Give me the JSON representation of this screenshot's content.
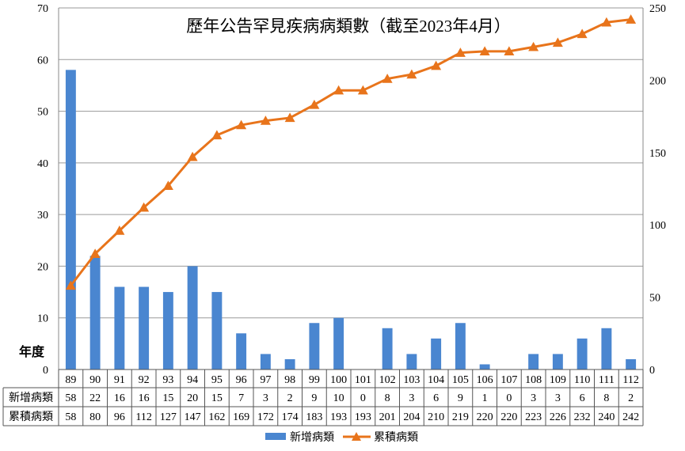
{
  "chart_data": {
    "type": "bar+line",
    "title": "歷年公告罕見疾病病類數（截至2023年4月）",
    "categories": [
      "89",
      "90",
      "91",
      "92",
      "93",
      "94",
      "95",
      "96",
      "97",
      "98",
      "99",
      "100",
      "101",
      "102",
      "103",
      "104",
      "105",
      "106",
      "107",
      "108",
      "109",
      "110",
      "111",
      "112"
    ],
    "xlabel": "年度",
    "series": [
      {
        "name": "新增病類",
        "type": "bar",
        "axis": "left",
        "color": "#4a86d0",
        "values": [
          58,
          22,
          16,
          16,
          15,
          20,
          15,
          7,
          3,
          2,
          9,
          10,
          0,
          8,
          3,
          6,
          9,
          1,
          0,
          3,
          3,
          6,
          8,
          2
        ]
      },
      {
        "name": "累積病類",
        "type": "line",
        "axis": "right",
        "color": "#e8741b",
        "marker": "triangle",
        "values": [
          58,
          80,
          96,
          112,
          127,
          147,
          162,
          169,
          172,
          174,
          183,
          193,
          193,
          201,
          204,
          210,
          219,
          220,
          220,
          223,
          226,
          232,
          240,
          242
        ]
      }
    ],
    "y_left": {
      "min": 0,
      "max": 70,
      "ticks": [
        0,
        10,
        20,
        30,
        40,
        50,
        60,
        70
      ]
    },
    "y_right": {
      "min": 0,
      "max": 250,
      "ticks": [
        0,
        50,
        100,
        150,
        200,
        250
      ]
    },
    "grid": true,
    "data_table": true,
    "legend_position": "bottom"
  }
}
